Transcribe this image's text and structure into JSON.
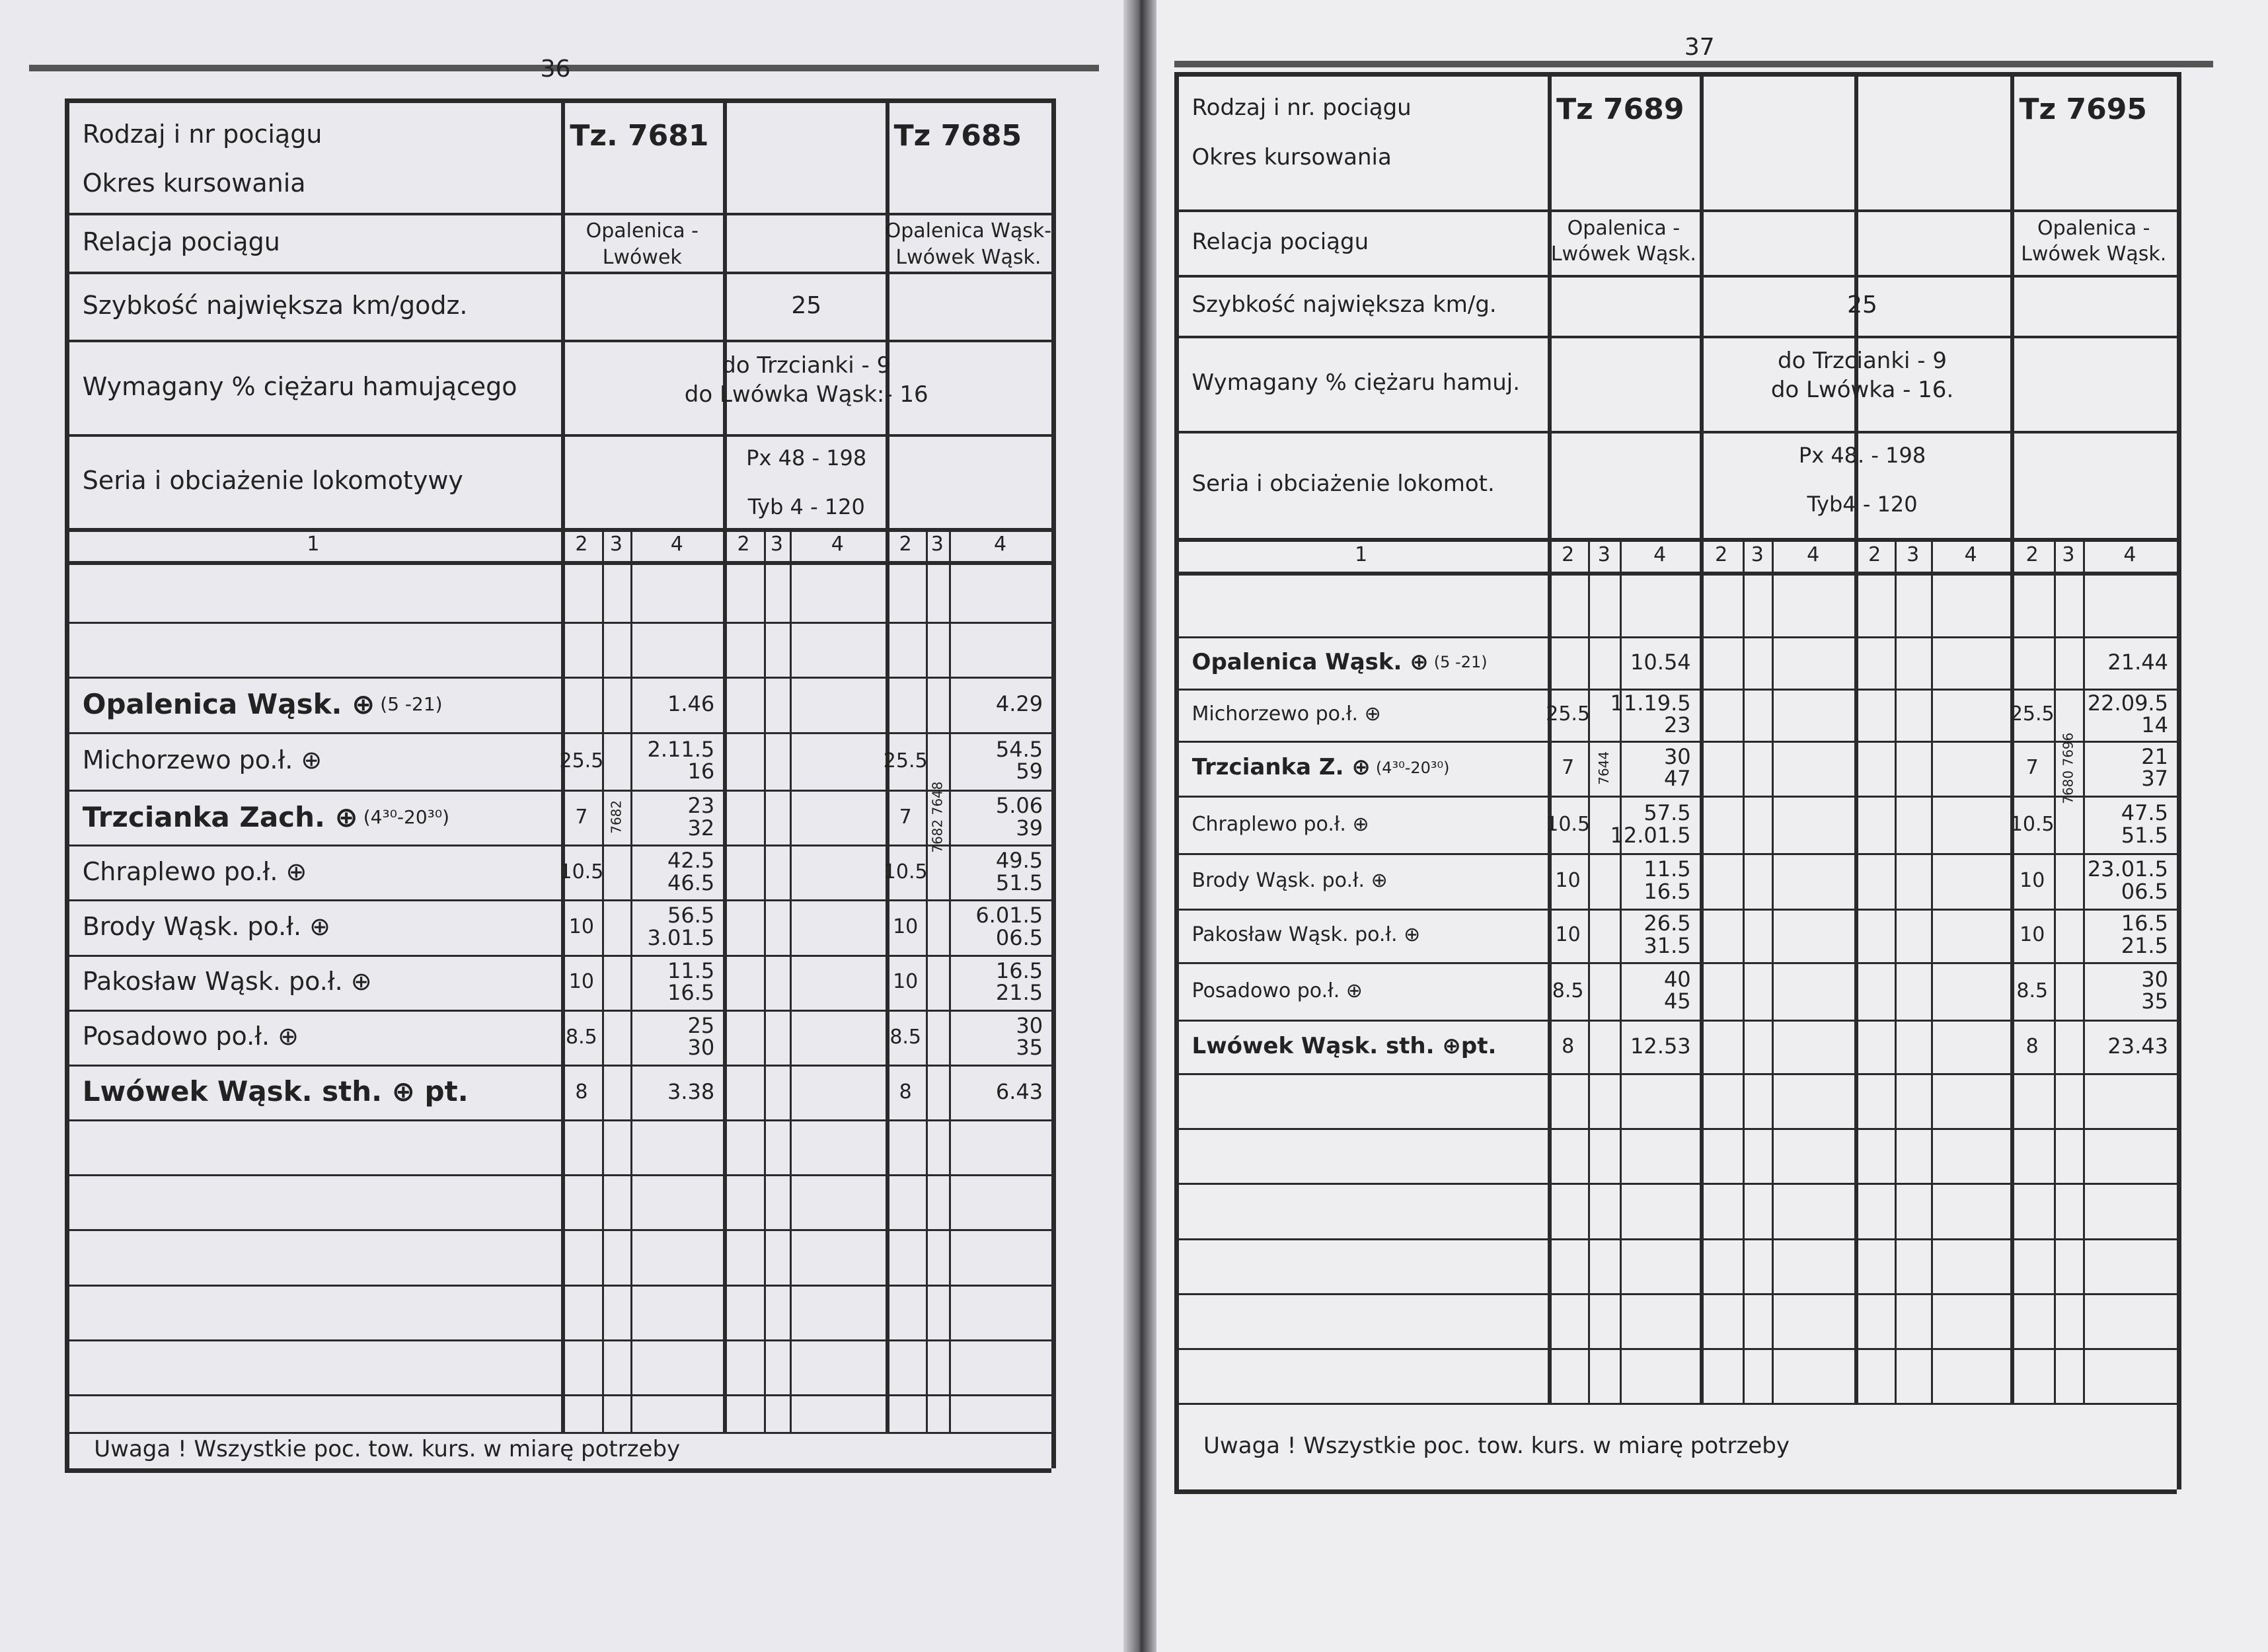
{
  "pages": [
    {
      "page_number": "36",
      "labels": {
        "train": "Rodzaj i nr pociągu",
        "period": "Okres kursowania",
        "relation": "Relacja pociągu",
        "speed": "Szybkość największa km/godz.",
        "brake": "Wymagany % ciężaru hamującego",
        "loco": "Seria i obciażenie lokomotywy"
      },
      "trains": [
        {
          "number": "Tz. 7681",
          "relation": [
            "Opalenica -",
            "Lwówek"
          ],
          "crossing": "7682",
          "stops": [
            {
              "km": "",
              "times": [
                "1.46"
              ]
            },
            {
              "km": "25.5",
              "times": [
                "2.11.5",
                "16"
              ]
            },
            {
              "km": "7",
              "times": [
                "23",
                "32"
              ]
            },
            {
              "km": "10.5",
              "times": [
                "42.5",
                "46.5"
              ]
            },
            {
              "km": "10",
              "times": [
                "56.5",
                "3.01.5"
              ]
            },
            {
              "km": "10",
              "times": [
                "11.5",
                "16.5"
              ]
            },
            {
              "km": "8.5",
              "times": [
                "25",
                "30"
              ]
            },
            {
              "km": "8",
              "times": [
                "3.38"
              ]
            }
          ]
        },
        {
          "number": "",
          "relation": [],
          "crossing": "",
          "stops": []
        },
        {
          "number": "Tz 7685",
          "relation": [
            "Opalenica Wąsk-",
            "Lwówek Wąsk."
          ],
          "crossing": "7682 7648",
          "stops": [
            {
              "km": "",
              "times": [
                "4.29"
              ]
            },
            {
              "km": "25.5",
              "times": [
                "54.5",
                "59"
              ]
            },
            {
              "km": "7",
              "times": [
                "5.06",
                "39"
              ]
            },
            {
              "km": "10.5",
              "times": [
                "49.5",
                "51.5"
              ]
            },
            {
              "km": "10",
              "times": [
                "6.01.5",
                "06.5"
              ]
            },
            {
              "km": "10",
              "times": [
                "16.5",
                "21.5"
              ]
            },
            {
              "km": "8.5",
              "times": [
                "30",
                "35"
              ]
            },
            {
              "km": "8",
              "times": [
                "6.43"
              ]
            }
          ]
        }
      ],
      "speed": "25",
      "brake": [
        "do Trzcianki  -  9",
        "do Lwówka Wąsk:-  16"
      ],
      "loco": [
        "Px 48  -  198",
        "Tyb 4  -  120"
      ],
      "column_numbers": [
        "1",
        "2",
        "3",
        "4"
      ],
      "stations": [
        {
          "name": "Opalenica Wąsk. ⊕",
          "note": "(5 -21)",
          "bold": true
        },
        {
          "name": "Michorzewo po.ł. ⊕",
          "note": "",
          "bold": false
        },
        {
          "name": "Trzcianka Zach. ⊕",
          "note": "(4³⁰-20³⁰)",
          "bold": true
        },
        {
          "name": "Chraplewo po.ł. ⊕",
          "note": "",
          "bold": false
        },
        {
          "name": "Brody Wąsk. po.ł. ⊕",
          "note": "",
          "bold": false
        },
        {
          "name": "Pakosław Wąsk. po.ł. ⊕",
          "note": "",
          "bold": false
        },
        {
          "name": "Posadowo po.ł. ⊕",
          "note": "",
          "bold": false
        },
        {
          "name": "Lwówek Wąsk. sth. ⊕ pt.",
          "note": "",
          "bold": true
        }
      ],
      "footer": "Uwaga ! Wszystkie poc. tow. kurs. w miarę potrzeby"
    },
    {
      "page_number": "37",
      "labels": {
        "train": "Rodzaj i nr. pociągu",
        "period": "Okres kursowania",
        "relation": "Relacja pociągu",
        "speed": "Szybkość największa km/g.",
        "brake": "Wymagany % ciężaru hamuj.",
        "loco": "Seria i obciażenie lokomot."
      },
      "trains": [
        {
          "number": "Tz 7689",
          "relation": [
            "Opalenica -",
            "Lwówek Wąsk."
          ],
          "crossing": "7644",
          "stops": [
            {
              "km": "",
              "times": [
                "10.54"
              ]
            },
            {
              "km": "25.5",
              "times": [
                "11.19.5",
                "23"
              ]
            },
            {
              "km": "7",
              "times": [
                "30",
                "47"
              ]
            },
            {
              "km": "10.5",
              "times": [
                "57.5",
                "12.01.5"
              ]
            },
            {
              "km": "10",
              "times": [
                "11.5",
                "16.5"
              ]
            },
            {
              "km": "10",
              "times": [
                "26.5",
                "31.5"
              ]
            },
            {
              "km": "8.5",
              "times": [
                "40",
                "45"
              ]
            },
            {
              "km": "8",
              "times": [
                "12.53"
              ]
            }
          ]
        },
        {
          "number": "",
          "relation": [],
          "crossing": "",
          "stops": []
        },
        {
          "number": "",
          "relation": [],
          "crossing": "",
          "stops": []
        },
        {
          "number": "Tz 7695",
          "relation": [
            "Opalenica -",
            "Lwówek Wąsk."
          ],
          "crossing": "7680 7696",
          "stops": [
            {
              "km": "",
              "times": [
                "21.44"
              ]
            },
            {
              "km": "25.5",
              "times": [
                "22.09.5",
                "14"
              ]
            },
            {
              "km": "7",
              "times": [
                "21",
                "37"
              ]
            },
            {
              "km": "10.5",
              "times": [
                "47.5",
                "51.5"
              ]
            },
            {
              "km": "10",
              "times": [
                "23.01.5",
                "06.5"
              ]
            },
            {
              "km": "10",
              "times": [
                "16.5",
                "21.5"
              ]
            },
            {
              "km": "8.5",
              "times": [
                "30",
                "35"
              ]
            },
            {
              "km": "8",
              "times": [
                "23.43"
              ]
            }
          ]
        }
      ],
      "speed": "25",
      "brake": [
        "do Trzcianki  -  9",
        "do Lwówka  -  16."
      ],
      "loco": [
        "Px 48.  -  198",
        "Tyb4  -  120"
      ],
      "column_numbers": [
        "1",
        "2",
        "3",
        "4"
      ],
      "stations": [
        {
          "name": "Opalenica Wąsk. ⊕",
          "note": "(5 -21)",
          "bold": true
        },
        {
          "name": "Michorzewo po.ł. ⊕",
          "note": "",
          "bold": false
        },
        {
          "name": "Trzcianka Z. ⊕",
          "note": "(4³⁰-20³⁰)",
          "bold": true
        },
        {
          "name": "Chraplewo po.ł. ⊕",
          "note": "",
          "bold": false
        },
        {
          "name": "Brody Wąsk. po.ł. ⊕",
          "note": "",
          "bold": false
        },
        {
          "name": "Pakosław Wąsk. po.ł. ⊕",
          "note": "",
          "bold": false
        },
        {
          "name": "Posadowo po.ł. ⊕",
          "note": "",
          "bold": false
        },
        {
          "name": "Lwówek Wąsk. sth. ⊕pt.",
          "note": "",
          "bold": true
        }
      ],
      "footer": "Uwaga ! Wszystkie poc. tow. kurs. w miarę potrzeby"
    }
  ]
}
